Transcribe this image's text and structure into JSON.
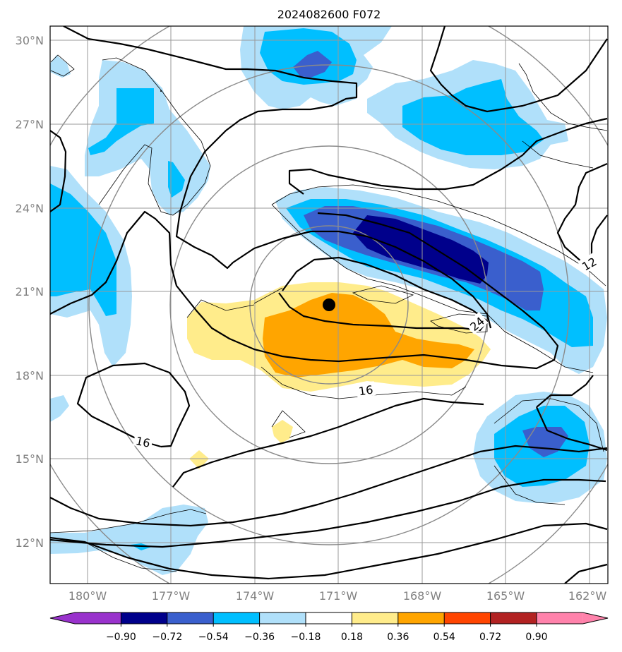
{
  "title": "2024082600 F072",
  "lat_labels": [
    "30°N",
    "27°N",
    "24°N",
    "21°N",
    "18°N",
    "15°N",
    "12°N"
  ],
  "lon_labels": [
    "180°W",
    "177°W",
    "174°W",
    "171°W",
    "168°W",
    "165°W",
    "162°W"
  ],
  "contour_labels": [
    "16",
    "16",
    "24",
    "12"
  ],
  "colorbar": {
    "ticks": [
      "−0.90",
      "−0.72",
      "−0.54",
      "−0.36",
      "−0.18",
      "0.18",
      "0.36",
      "0.54",
      "0.72",
      "0.90"
    ],
    "colors": {
      "under": "#9932cc",
      "c1": "#00008b",
      "c2": "#3a5fcd",
      "c3": "#00bfff",
      "c4": "#b0e0fa",
      "c5": "#ffffff",
      "c6": "#ffec8b",
      "c7": "#ffa500",
      "c8": "#ff4500",
      "c9": "#b22222",
      "over": "#ff82ab"
    }
  },
  "storm_center": {
    "lat": 20.6,
    "lon": -171.3
  }
}
